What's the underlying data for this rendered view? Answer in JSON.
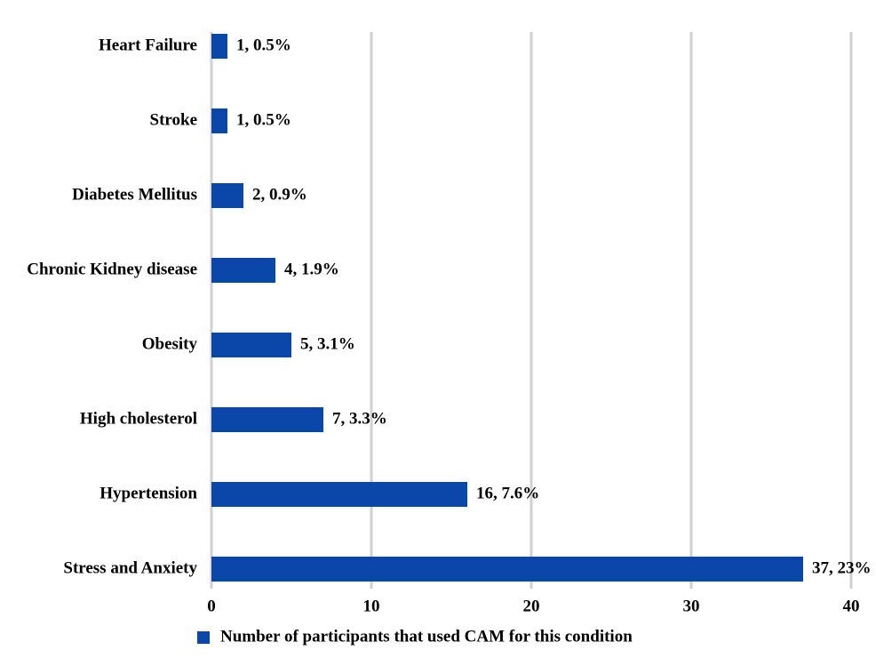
{
  "chart_data": {
    "type": "hbar",
    "categories": [
      "Heart Failure",
      "Stroke",
      "Diabetes Mellitus",
      "Chronic Kidney disease",
      "Obesity",
      "High cholesterol",
      "Hypertension",
      "Stress and Anxiety"
    ],
    "series": [
      {
        "name": "Number of participants that used CAM for this condition",
        "color": "#0b47a8",
        "values": [
          1,
          1,
          2,
          4,
          5,
          7,
          16,
          37
        ],
        "value_labels": [
          "1, 0.5%",
          "1, 0.5%",
          "2, 0.9%",
          "4, 1.9%",
          "5, 3.1%",
          "7, 3.3%",
          "16, 7.6%",
          "37, 23%"
        ]
      }
    ],
    "xlim": [
      0,
      40
    ],
    "xticks": [
      0,
      10,
      20,
      30,
      40
    ],
    "grid": true,
    "legend": "bottom"
  }
}
